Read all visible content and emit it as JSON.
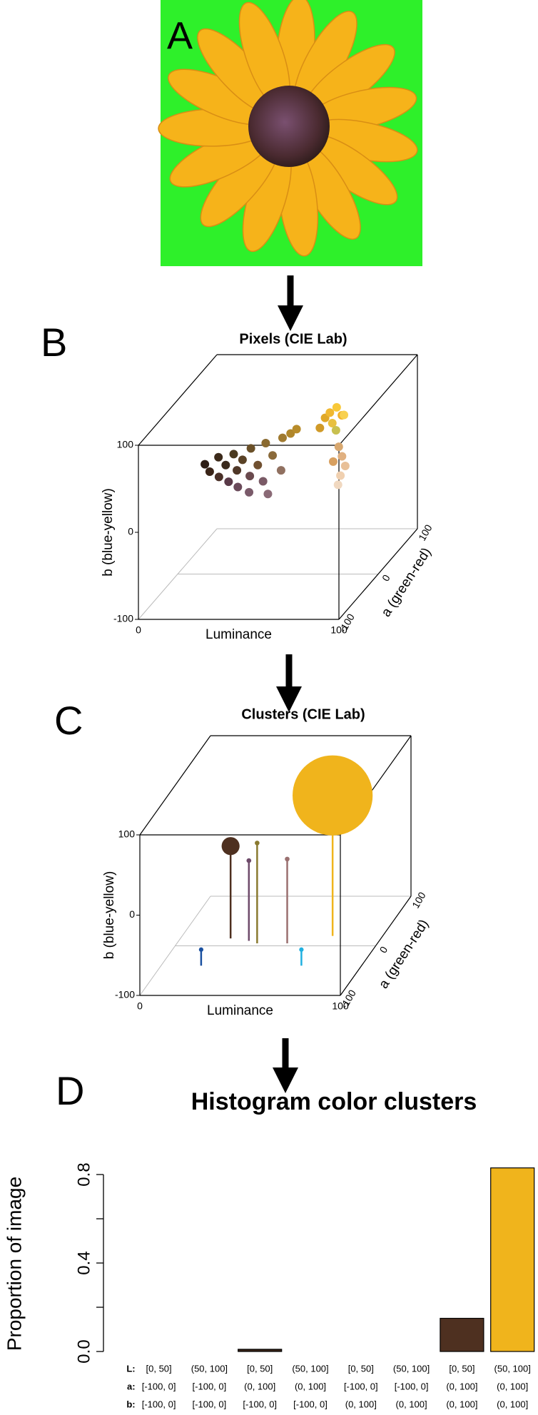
{
  "panel_a": {
    "label": "A"
  },
  "chart_data": [
    {
      "type": "scatter3d",
      "panel_label": "B",
      "title": "Pixels (CIE Lab)",
      "xlabel": "Luminance",
      "ylabel": "b (blue-yellow)",
      "zlabel": "a (green-red)",
      "xlim": [
        0,
        100
      ],
      "ylim": [
        -100,
        100
      ],
      "zlim": [
        -100,
        100
      ],
      "xticks": [
        0,
        100
      ],
      "yticks": [
        -100,
        0,
        100
      ],
      "zticks": [
        -100,
        0,
        100
      ],
      "x": [
        12,
        15,
        18,
        20,
        22,
        25,
        25,
        28,
        30,
        30,
        33,
        35,
        36,
        38,
        40,
        42,
        45,
        45,
        48,
        50,
        52,
        55,
        68,
        70,
        72,
        75,
        78,
        74,
        77,
        80,
        78,
        80,
        82,
        80,
        76,
        79
      ],
      "y": [
        22,
        15,
        28,
        10,
        20,
        30,
        5,
        15,
        25,
        0,
        35,
        10,
        -5,
        20,
        40,
        5,
        -8,
        30,
        45,
        15,
        50,
        55,
        60,
        70,
        75,
        80,
        72,
        65,
        60,
        75,
        40,
        30,
        20,
        10,
        25,
        0
      ],
      "z": [
        8,
        5,
        12,
        3,
        10,
        15,
        2,
        8,
        12,
        0,
        18,
        5,
        -2,
        10,
        20,
        3,
        0,
        12,
        22,
        8,
        22,
        22,
        15,
        18,
        20,
        22,
        20,
        16,
        10,
        15,
        12,
        10,
        8,
        6,
        8,
        5
      ],
      "colors": [
        "#2e1e16",
        "#3a2418",
        "#3c2a1a",
        "#4a3028",
        "#3a2a1c",
        "#4a3a20",
        "#5a3a48",
        "#503828",
        "#5a4226",
        "#6a4a5a",
        "#6a5028",
        "#6a4a4e",
        "#7a5a6a",
        "#705030",
        "#8a6a30",
        "#7a5a66",
        "#8a6a76",
        "#8a6a3a",
        "#a07a30",
        "#907060",
        "#b0862a",
        "#b88c2a",
        "#d09a28",
        "#e0a828",
        "#f0b830",
        "#f8c838",
        "#f0b028",
        "#e8c040",
        "#c8c050",
        "#f8d050",
        "#d8a870",
        "#e0b080",
        "#e8c098",
        "#f0d0b0",
        "#d8a060",
        "#f0d8c0"
      ]
    },
    {
      "type": "scatter3d",
      "panel_label": "C",
      "title": "Clusters (CIE Lab)",
      "xlabel": "Luminance",
      "ylabel": "b (blue-yellow)",
      "zlabel": "a (green-red)",
      "xlim": [
        0,
        100
      ],
      "ylim": [
        -100,
        100
      ],
      "zlim": [
        -100,
        100
      ],
      "xticks": [
        0,
        100
      ],
      "yticks": [
        -100,
        0,
        100
      ],
      "zticks": [
        -100,
        0,
        100
      ],
      "stems": true,
      "x": [
        75,
        25,
        35,
        40,
        55,
        20,
        70
      ],
      "y": [
        75,
        15,
        0,
        25,
        5,
        -80,
        -80
      ],
      "z": [
        20,
        15,
        10,
        5,
        5,
        -40,
        -40
      ],
      "sizes": [
        0.83,
        0.15,
        0.005,
        0.005,
        0.005,
        0.002,
        0.002
      ],
      "colors": [
        "#f0b41c",
        "#4e3020",
        "#6e4a6a",
        "#8a7a30",
        "#9a7070",
        "#1a50a0",
        "#20b0e0"
      ]
    },
    {
      "type": "bar",
      "panel_label": "D",
      "title": "Histogram color clusters",
      "ylabel": "Proportion of image",
      "category_row_names": [
        "L:",
        "a:",
        "b:"
      ],
      "categories": [
        [
          "[0, 50]",
          "[-100, 0]",
          "[-100, 0]"
        ],
        [
          "(50, 100]",
          "[-100, 0]",
          "[-100, 0]"
        ],
        [
          "[0, 50]",
          "(0, 100]",
          "[-100, 0]"
        ],
        [
          "(50, 100]",
          "(0, 100]",
          "[-100, 0]"
        ],
        [
          "[0, 50]",
          "[-100, 0]",
          "(0, 100]"
        ],
        [
          "(50, 100]",
          "[-100, 0]",
          "(0, 100]"
        ],
        [
          "[0, 50]",
          "(0, 100]",
          "(0, 100]"
        ],
        [
          "(50, 100]",
          "(0, 100]",
          "(0, 100]"
        ]
      ],
      "values": [
        0,
        0,
        0.01,
        0,
        0,
        0,
        0.15,
        0.83
      ],
      "colors": [
        "#000000",
        "#000000",
        "#3a2418",
        "#000000",
        "#000000",
        "#000000",
        "#4e3020",
        "#f0b41c"
      ],
      "ylim": [
        0,
        0.8
      ],
      "yticks": [
        {
          "value": 0,
          "label": "0.0"
        },
        0.4,
        0.8
      ],
      "minor_yticks": [
        0.2,
        0.6
      ]
    }
  ]
}
